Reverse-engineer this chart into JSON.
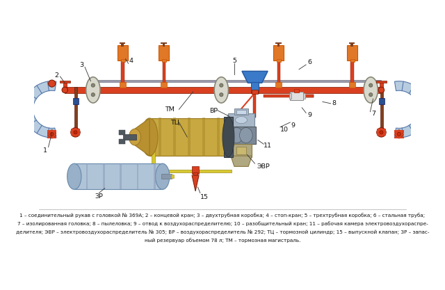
{
  "background_color": "#ffffff",
  "caption_lines": [
    "1 – соединительный рукав с головкой № 369А; 2 – концевой кран; 3 – двухтрубная коробка; 4 – стоп-кран; 5 – трехтрубная коробка; 6 – стальная труба;",
    "7 – изолированная головка; 8 – пылеловка; 9 – отвод к воздухораспределителю; 10 – разобщительный кран; 11 – рабочая камера электровоздухораспре-",
    "делителя; ЭВР – электровоздухораспределитель № 305; ВР – воздухораспределитель № 292; ТЦ – тормозной цилиндр; 15 – выпускной клапан; ЗР – запас-",
    "ный резервуар объемом 78 л; ТМ – тормозная магистраль."
  ],
  "pipe_color": "#d94020",
  "pipe_dark": "#7a1800",
  "box_color": "#e07828",
  "blue_valve": "#3a7ac8",
  "blue_dark": "#2255a0",
  "iso_fill": "#d8d8cc",
  "iso_edge": "#888877",
  "hose_fill": "#b8cce0",
  "hose_edge": "#5577aa",
  "gold_fill": "#c8a840",
  "gold_dark": "#9a7820",
  "gray_main": "#7a8898",
  "gray_light": "#a8b8c8",
  "gray_dark": "#505860",
  "evr_fill": "#b0a880",
  "yellow_pipe": "#d8c830",
  "dark_brown": "#804020",
  "blue_block": "#2a5090",
  "white": "#ffffff"
}
